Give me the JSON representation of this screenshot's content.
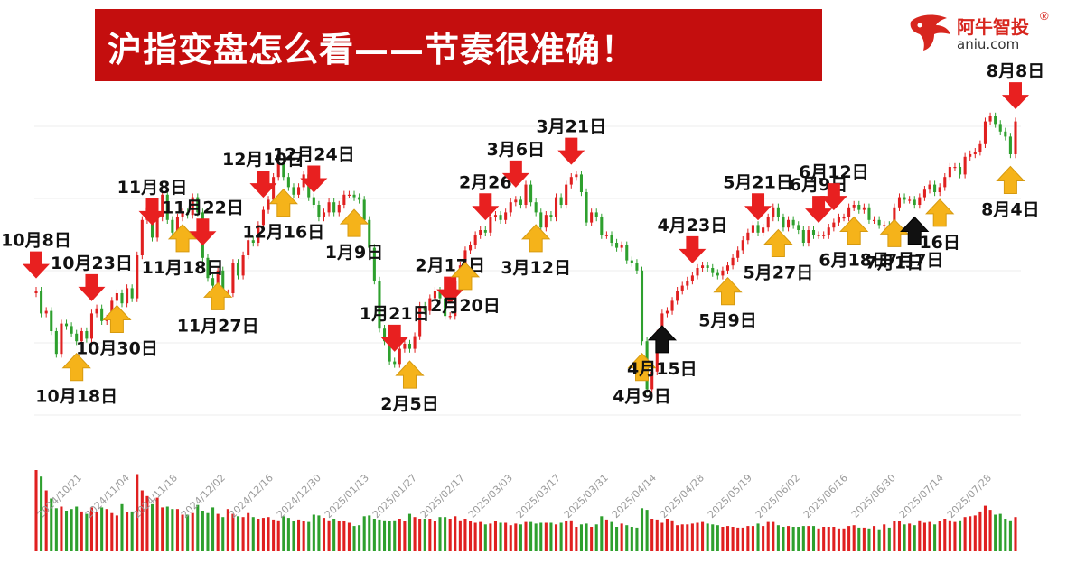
{
  "header": {
    "title": "沪指变盘怎么看——节奏很准确！",
    "logo_cn": "阿牛智投",
    "logo_reg": "®",
    "logo_en": "aniu.com"
  },
  "colors": {
    "up": "#e02020",
    "down": "#2ea02e",
    "banner": "#c40e0e",
    "top_arrow": "#e82020",
    "bottom_arrow": "#f5b31a",
    "special_arrow": "#111111"
  },
  "chart_data": {
    "type": "candlestick",
    "title": "沪指变盘怎么看——节奏很准确！",
    "xlabel": "",
    "ylabel": "",
    "grid": true,
    "date_ticks": [
      "2024/10/21",
      "2024/11/04",
      "2024/11/18",
      "2024/12/02",
      "2024/12/16",
      "2024/12/30",
      "2025/01/13",
      "2025/01/27",
      "2025/02/17",
      "2025/03/03",
      "2025/03/17",
      "2025/03/31",
      "2025/04/14",
      "2025/04/28",
      "2025/05/19",
      "2025/06/02",
      "2025/06/16",
      "2025/06/30",
      "2025/07/14",
      "2025/07/28"
    ],
    "closes": [
      41,
      32,
      33,
      25,
      16,
      28,
      27,
      24,
      21,
      25,
      22,
      32,
      34,
      29,
      30,
      37,
      40,
      36,
      42,
      38,
      55,
      69,
      74,
      62,
      70,
      79,
      69,
      64,
      70,
      72,
      71,
      78,
      72,
      54,
      46,
      43,
      49,
      40,
      40,
      52,
      47,
      55,
      61,
      60,
      67,
      73,
      77,
      86,
      92,
      86,
      82,
      79,
      82,
      87,
      78,
      75,
      70,
      72,
      76,
      72,
      75,
      79,
      79,
      78,
      77,
      69,
      58,
      45,
      26,
      21,
      13,
      12,
      18,
      20,
      18,
      23,
      35,
      33,
      38,
      41,
      38,
      31,
      31,
      45,
      51,
      57,
      59,
      63,
      65,
      64,
      70,
      71,
      69,
      72,
      76,
      77,
      75,
      83,
      76,
      72,
      66,
      71,
      70,
      78,
      75,
      83,
      86,
      87,
      80,
      68,
      72,
      70,
      63,
      63,
      60,
      58,
      59,
      53,
      52,
      49,
      21,
      2,
      9,
      24,
      32,
      33,
      37,
      41,
      43,
      45,
      47,
      50,
      51,
      50,
      48,
      47,
      49,
      51,
      54,
      57,
      61,
      64,
      67,
      64,
      66,
      70,
      74,
      70,
      66,
      69,
      67,
      65,
      60,
      65,
      63,
      63,
      63,
      66,
      68,
      70,
      70,
      74,
      75,
      73,
      74,
      69,
      69,
      67,
      67,
      61,
      74,
      78,
      77,
      77,
      75,
      78,
      81,
      83,
      80,
      82,
      86,
      90,
      90,
      87,
      94,
      95,
      96,
      99,
      108,
      110,
      107,
      104,
      102,
      95,
      108
    ],
    "volumes": [
      100,
      92,
      75,
      65,
      53,
      55,
      50,
      52,
      55,
      49,
      46,
      54,
      48,
      54,
      52,
      47,
      44,
      58,
      48,
      49,
      95,
      75,
      68,
      58,
      66,
      54,
      55,
      52,
      52,
      45,
      45,
      47,
      57,
      50,
      47,
      54,
      46,
      42,
      52,
      46,
      43,
      42,
      47,
      42,
      40,
      41,
      42,
      39,
      38,
      43,
      41,
      37,
      39,
      37,
      36,
      45,
      44,
      41,
      38,
      40,
      37,
      37,
      35,
      31,
      32,
      43,
      44,
      40,
      39,
      38,
      37,
      38,
      40,
      37,
      46,
      42,
      40,
      40,
      40,
      37,
      42,
      42,
      40,
      43,
      38,
      40,
      37,
      35,
      36,
      33,
      34,
      37,
      35,
      35,
      32,
      34,
      33,
      36,
      36,
      34,
      35,
      35,
      35,
      33,
      35,
      37,
      38,
      30,
      33,
      34,
      30,
      33,
      43,
      39,
      36,
      30,
      34,
      32,
      30,
      29,
      53,
      51,
      40,
      39,
      35,
      40,
      38,
      32,
      33,
      33,
      34,
      35,
      36,
      34,
      33,
      32,
      30,
      31,
      30,
      29,
      29,
      31,
      31,
      34,
      31,
      36,
      36,
      32,
      30,
      31,
      30,
      30,
      31,
      31,
      31,
      28,
      30,
      30,
      30,
      28,
      28,
      31,
      32,
      29,
      29,
      28,
      31,
      27,
      33,
      29,
      37,
      37,
      33,
      34,
      32,
      38,
      35,
      36,
      33,
      37,
      40,
      38,
      36,
      38,
      42,
      43,
      44,
      49,
      56,
      51,
      45,
      46,
      40,
      38,
      42
    ],
    "annotations": [
      {
        "label": "10月8日",
        "type": "top",
        "index": 0
      },
      {
        "label": "10月18日",
        "type": "bottom",
        "index": 8
      },
      {
        "label": "10月23日",
        "type": "top",
        "index": 11
      },
      {
        "label": "10月30日",
        "type": "bottom",
        "index": 16
      },
      {
        "label": "11月8日",
        "type": "top",
        "index": 23
      },
      {
        "label": "11月18日",
        "type": "bottom",
        "index": 29
      },
      {
        "label": "11月22日",
        "type": "top",
        "index": 33
      },
      {
        "label": "11月27日",
        "type": "bottom",
        "index": 36
      },
      {
        "label": "12月10日",
        "type": "top",
        "index": 45
      },
      {
        "label": "12月16日",
        "type": "bottom",
        "index": 49
      },
      {
        "label": "12月24日",
        "type": "top",
        "index": 55
      },
      {
        "label": "1月9日",
        "type": "bottom",
        "index": 63
      },
      {
        "label": "1月21日",
        "type": "top",
        "index": 71
      },
      {
        "label": "2月5日",
        "type": "bottom",
        "index": 74
      },
      {
        "label": "2月17日",
        "type": "top",
        "index": 82
      },
      {
        "label": "2月20日",
        "type": "bottom",
        "index": 85
      },
      {
        "label": "2月26",
        "type": "top",
        "index": 89
      },
      {
        "label": "3月6日",
        "type": "top",
        "index": 95
      },
      {
        "label": "3月12日",
        "type": "bottom",
        "index": 99
      },
      {
        "label": "3月21日",
        "type": "top",
        "index": 106
      },
      {
        "label": "4月9日",
        "type": "bottom",
        "index": 120
      },
      {
        "label": "4月15日",
        "type": "special",
        "index": 124
      },
      {
        "label": "4月23日",
        "type": "top",
        "index": 130
      },
      {
        "label": "5月9日",
        "type": "bottom",
        "index": 137
      },
      {
        "label": "5月21日",
        "type": "top",
        "index": 143
      },
      {
        "label": "5月27日",
        "type": "bottom",
        "index": 147
      },
      {
        "label": "6月9日",
        "type": "top",
        "index": 155
      },
      {
        "label": "6月12日",
        "type": "top",
        "index": 158
      },
      {
        "label": "6月18日",
        "type": "bottom",
        "index": 162
      },
      {
        "label": "7月1日",
        "type": "bottom",
        "index": 170
      },
      {
        "label": "7月7日",
        "type": "special",
        "index": 174
      },
      {
        "label": "16日",
        "type": "bottom",
        "index": 179
      },
      {
        "label": "8月4日",
        "type": "bottom",
        "index": 193
      },
      {
        "label": "8月8日",
        "type": "top",
        "index": 196
      }
    ]
  }
}
